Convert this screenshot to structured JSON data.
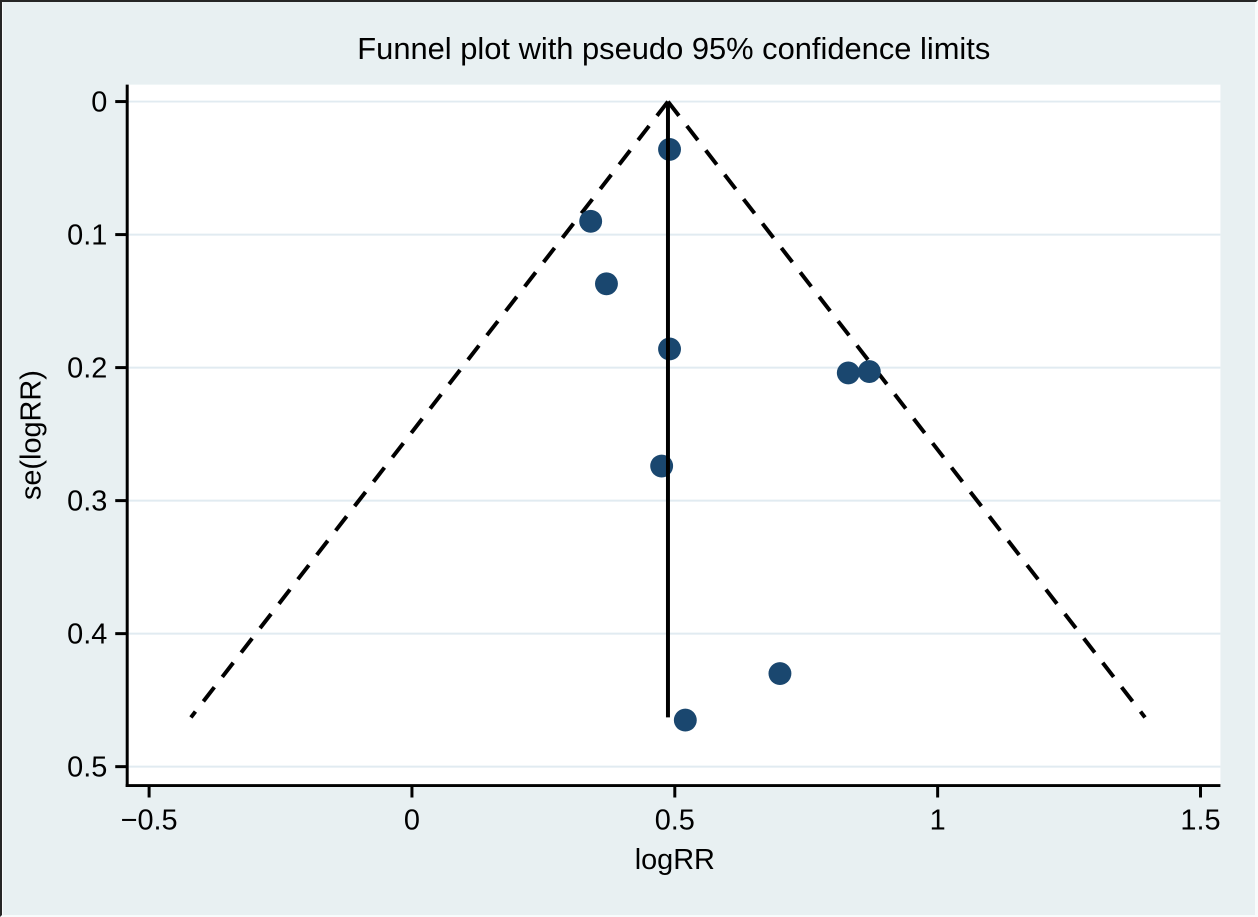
{
  "chart_data": {
    "type": "scatter",
    "title": "Funnel plot with pseudo 95% confidence limits",
    "xlabel": "logRR",
    "ylabel": "se(logRR)",
    "xlim": [
      -0.5,
      1.5
    ],
    "ylim": [
      0,
      0.5
    ],
    "y_axis_inverted": true,
    "grid": true,
    "legend": "none",
    "x_ticks": [
      -0.5,
      0,
      0.5,
      1,
      1.5
    ],
    "x_tick_labels": [
      "−0.5",
      "0",
      "0.5",
      "1",
      "1.5"
    ],
    "y_ticks": [
      0,
      0.1,
      0.2,
      0.3,
      0.4,
      0.5
    ],
    "y_tick_labels": [
      "0",
      "0.1",
      "0.2",
      "0.3",
      "0.4",
      "0.5"
    ],
    "pooled_logRR": 0.487,
    "z_value": 1.96,
    "funnel_se_max": 0.463,
    "points": [
      {
        "logRR": 0.49,
        "se": 0.036
      },
      {
        "logRR": 0.34,
        "se": 0.09
      },
      {
        "logRR": 0.37,
        "se": 0.137
      },
      {
        "logRR": 0.49,
        "se": 0.186
      },
      {
        "logRR": 0.83,
        "se": 0.204
      },
      {
        "logRR": 0.87,
        "se": 0.203
      },
      {
        "logRR": 0.475,
        "se": 0.274
      },
      {
        "logRR": 0.7,
        "se": 0.43
      },
      {
        "logRR": 0.52,
        "se": 0.465
      }
    ],
    "colors": {
      "marker": "#1a476f",
      "line": "#000000",
      "grid": "#e1ebf1",
      "plot_background": "#ffffff",
      "outer_background": "#e8f0f2",
      "text": "#000000"
    }
  }
}
